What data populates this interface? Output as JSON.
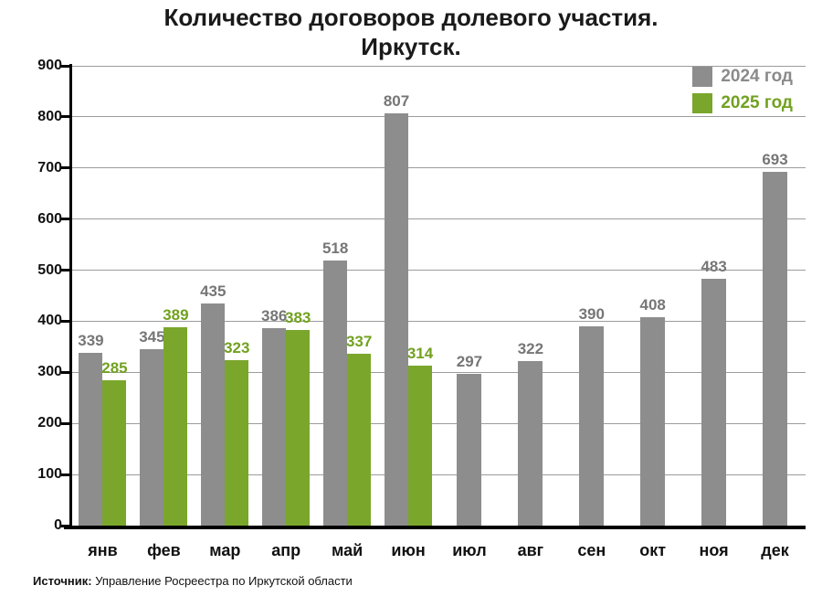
{
  "title": {
    "line1": "Количество договоров долевого участия.",
    "line2": "Иркутск."
  },
  "legend": [
    {
      "label": "2024 год",
      "color": "#8d8d8d",
      "text_color": "#8a8a8a"
    },
    {
      "label": "2025 год",
      "color": "#7aa62c",
      "text_color": "#72a120"
    }
  ],
  "footer": {
    "source_label": "Источник:",
    "source_text": " Управление Росреестра по Иркутской области"
  },
  "chart_data": {
    "type": "bar",
    "categories": [
      "янв",
      "фев",
      "мар",
      "апр",
      "май",
      "июн",
      "июл",
      "авг",
      "сен",
      "окт",
      "ноя",
      "дек"
    ],
    "series": [
      {
        "name": "2024 год",
        "color": "#8d8d8d",
        "label_color": "#767676",
        "values": [
          339,
          345,
          435,
          386,
          518,
          807,
          297,
          322,
          390,
          408,
          483,
          693
        ]
      },
      {
        "name": "2025 год",
        "color": "#7aa62c",
        "label_color": "#72a120",
        "values": [
          285,
          389,
          323,
          383,
          337,
          314,
          null,
          null,
          null,
          null,
          null,
          null
        ]
      }
    ],
    "ylim": [
      0,
      900
    ],
    "ytick_step": 100,
    "grid": true,
    "legend_position": "top-right"
  }
}
